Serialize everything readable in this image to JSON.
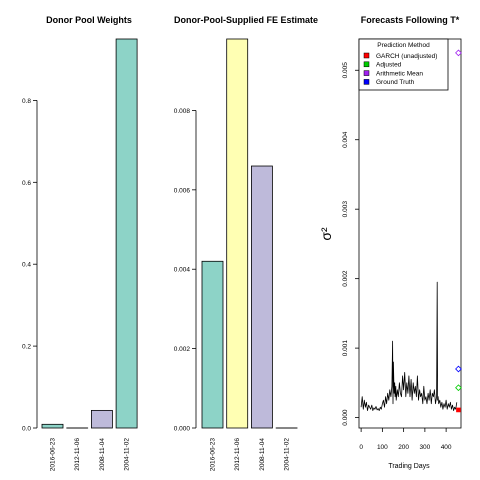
{
  "figure": {
    "panel1_title": "Donor Pool Weights",
    "panel2_title": "Donor-Pool-Supplied FE Estimate",
    "panel3_title": "Forecasts Following T*"
  },
  "colors": {
    "teal": "#8dd3c7",
    "yellow": "#ffffb3",
    "lavender": "#bebada",
    "garch": "#ff0000",
    "adjusted": "#00cc00",
    "arithmetic_mean": "#a020f0",
    "ground_truth": "#0000ff"
  },
  "chart_data": [
    {
      "type": "bar",
      "title": "Donor Pool Weights",
      "xlabel": "",
      "ylabel": "",
      "categories": [
        "2016-06-23",
        "2012-11-06",
        "2008-11-04",
        "2004-11-02"
      ],
      "values": [
        0.009,
        0.0,
        0.043,
        0.95
      ],
      "colors": [
        "#8dd3c7",
        "#ffffb3",
        "#bebada",
        "#8dd3c7"
      ],
      "ylim": [
        0,
        0.95
      ],
      "yticks": [
        0.0,
        0.2,
        0.4,
        0.6,
        0.8
      ],
      "ytick_labels": [
        "0.0",
        "0.2",
        "0.4",
        "0.6",
        "0.8"
      ]
    },
    {
      "type": "bar",
      "title": "Donor-Pool-Supplied FE Estimate",
      "xlabel": "",
      "ylabel": "",
      "categories": [
        "2016-06-23",
        "2012-11-06",
        "2008-11-04",
        "2004-11-02"
      ],
      "values": [
        0.0042,
        0.0098,
        0.0066,
        0.0
      ],
      "colors": [
        "#8dd3c7",
        "#ffffb3",
        "#bebada",
        "#8dd3c7"
      ],
      "ylim": [
        0,
        0.0098
      ],
      "yticks": [
        0.0,
        0.002,
        0.004,
        0.006,
        0.008
      ],
      "ytick_labels": [
        "0.000",
        "0.002",
        "0.004",
        "0.006",
        "0.008"
      ]
    },
    {
      "type": "line",
      "title": "Forecasts Following T*",
      "xlabel": "Trading Days",
      "ylabel": "σ²",
      "xlim": [
        -10,
        470
      ],
      "ylim": [
        -0.00015,
        0.00545
      ],
      "xticks": [
        0,
        100,
        200,
        300,
        400
      ],
      "xtick_labels": [
        "0",
        "100",
        "200",
        "300",
        "400"
      ],
      "yticks": [
        0.0,
        0.001,
        0.002,
        0.003,
        0.004,
        0.005
      ],
      "ytick_labels": [
        "0.000",
        "0.001",
        "0.002",
        "0.003",
        "0.004",
        "0.005"
      ],
      "legend": {
        "title": "Prediction Method",
        "placement": "top",
        "entries": [
          {
            "label": "GARCH (unadjusted)",
            "color": "#ff0000"
          },
          {
            "label": "Adjusted",
            "color": "#00cc00"
          },
          {
            "label": "Arithmetic Mean",
            "color": "#a020f0"
          },
          {
            "label": "Ground Truth",
            "color": "#0000ff"
          }
        ]
      },
      "series": {
        "x": [
          0,
          5,
          10,
          15,
          20,
          25,
          30,
          35,
          40,
          45,
          50,
          55,
          60,
          65,
          70,
          75,
          80,
          85,
          90,
          95,
          100,
          105,
          110,
          115,
          120,
          125,
          130,
          135,
          140,
          145,
          148,
          150,
          152,
          155,
          158,
          160,
          163,
          165,
          170,
          175,
          180,
          185,
          190,
          195,
          200,
          205,
          210,
          215,
          220,
          225,
          230,
          235,
          240,
          245,
          250,
          255,
          260,
          265,
          270,
          275,
          280,
          285,
          290,
          295,
          300,
          305,
          310,
          315,
          320,
          325,
          330,
          335,
          340,
          345,
          350,
          355,
          358,
          360,
          362,
          365,
          370,
          375,
          380,
          385,
          390,
          395,
          400,
          405,
          410,
          415,
          420,
          425,
          430,
          435,
          440,
          445,
          450
        ],
        "y": [
          0.00015,
          0.0003,
          0.00012,
          0.00025,
          0.00015,
          0.00022,
          0.0001,
          0.00018,
          0.00015,
          0.00012,
          0.00018,
          0.0001,
          0.00014,
          0.00012,
          0.00016,
          0.00011,
          0.00013,
          0.0001,
          0.00015,
          0.00012,
          0.0002,
          0.00025,
          0.00015,
          0.0003,
          0.0002,
          0.00035,
          0.00025,
          0.0004,
          0.0003,
          0.00045,
          0.0011,
          0.0002,
          0.0008,
          0.00035,
          0.0005,
          0.0003,
          0.00045,
          0.00025,
          0.0004,
          0.0003,
          0.0005,
          0.00035,
          0.0003,
          0.0006,
          0.0004,
          0.00065,
          0.0003,
          0.0005,
          0.00035,
          0.0006,
          0.0003,
          0.00055,
          0.00025,
          0.0005,
          0.00035,
          0.00045,
          0.0003,
          0.0006,
          0.00025,
          0.0004,
          0.0003,
          0.00035,
          0.0002,
          0.00045,
          0.00025,
          0.0003,
          0.0002,
          0.00035,
          0.00025,
          0.0004,
          0.0002,
          0.00035,
          0.0003,
          0.0004,
          0.0002,
          0.0003,
          0.00195,
          0.00025,
          0.0003,
          0.0002,
          0.00025,
          0.00015,
          0.00022,
          0.00012,
          0.0002,
          0.00015,
          0.00025,
          0.00012,
          0.0002,
          0.00015,
          0.00022,
          0.00012,
          0.00018,
          0.0001,
          0.00015,
          0.00012,
          0.00022
        ]
      },
      "forecast_points": [
        {
          "method": "GARCH (unadjusted)",
          "x": 458,
          "y": 0.00011,
          "color": "#ff0000",
          "shape": "square"
        },
        {
          "method": "Adjusted",
          "x": 458,
          "y": 0.00043,
          "color": "#00cc00",
          "shape": "diamond"
        },
        {
          "method": "Ground Truth",
          "x": 458,
          "y": 0.0007,
          "color": "#0000ff",
          "shape": "diamond"
        },
        {
          "method": "Arithmetic Mean",
          "x": 458,
          "y": 0.00525,
          "color": "#a020f0",
          "shape": "diamond"
        }
      ]
    }
  ]
}
